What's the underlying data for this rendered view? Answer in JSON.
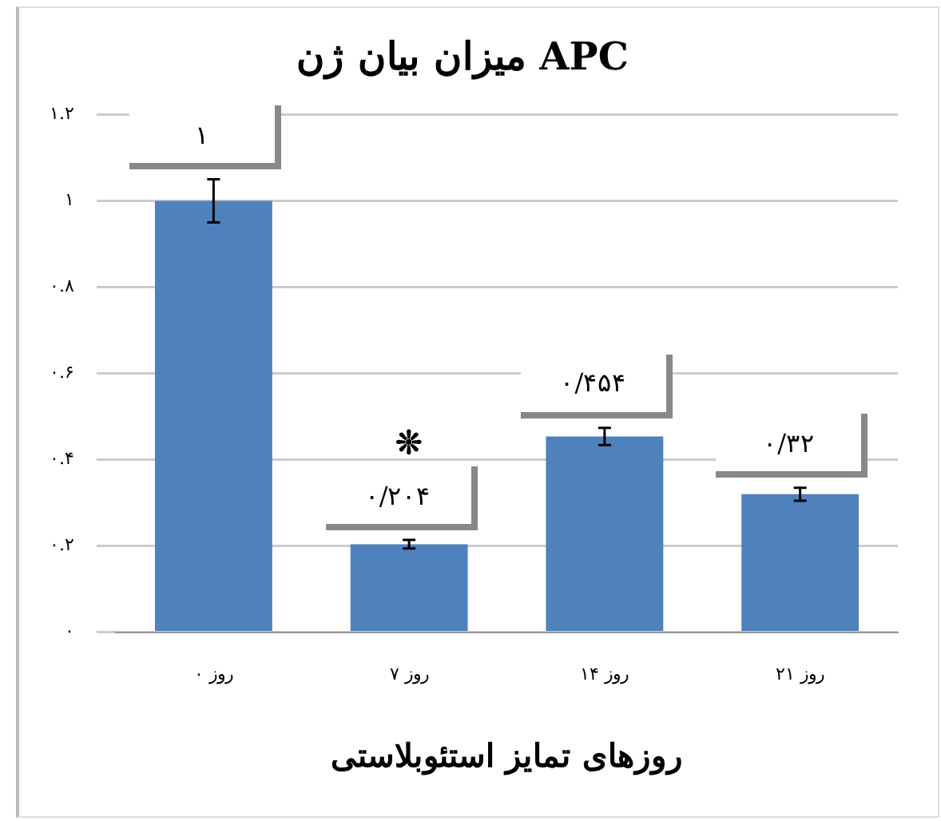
{
  "chart_data": {
    "type": "bar",
    "title": "میزان بیان ژن APC",
    "xlabel": "روزهای تمایز استئوبلاستی",
    "categories": [
      "روز ۰",
      "روز ۷",
      "روز ۱۴",
      "روز ۲۱"
    ],
    "values": [
      1,
      0.204,
      0.454,
      0.32
    ],
    "errors": [
      0.05,
      0.01,
      0.02,
      0.015
    ],
    "value_labels": [
      "۱",
      "۰/۲۰۴",
      "۰/۴۵۴",
      "۰/۳۲"
    ],
    "color": "#4f81bd",
    "ylim": [
      0,
      1.2
    ],
    "yticks": [
      {
        "value": 0,
        "label": "۰"
      },
      {
        "value": 0.2,
        "label": "۰.۲"
      },
      {
        "value": 0.4,
        "label": "۰.۴"
      },
      {
        "value": 0.6,
        "label": "۰.۶"
      },
      {
        "value": 0.8,
        "label": "۰.۸"
      },
      {
        "value": 1,
        "label": "۱"
      },
      {
        "value": 1.2,
        "label": "۱.۲"
      }
    ],
    "grid": "y",
    "annotations": [
      "❊"
    ]
  }
}
